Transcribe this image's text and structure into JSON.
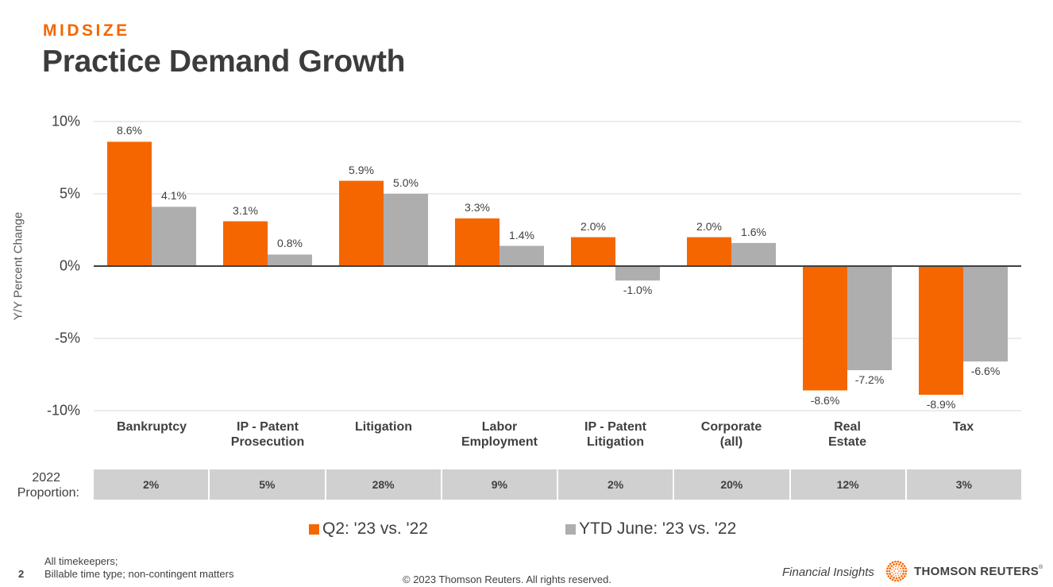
{
  "header": {
    "eyebrow": "MIDSIZE",
    "title": "Practice Demand Growth"
  },
  "colors": {
    "accent": "#f56600",
    "series_q2": "#f56600",
    "series_ytd": "#aeaeae",
    "gridline": "#d9d9d9",
    "zero_line": "#404040",
    "table_fill": "#d0d0d0"
  },
  "chart_data": {
    "type": "bar",
    "title": "Practice Demand Growth",
    "xlabel": "",
    "ylabel": "Y/Y Percent Change",
    "ylim": [
      -10,
      10
    ],
    "yticks": [
      10,
      5,
      0,
      -5,
      -10
    ],
    "ytick_labels": [
      "10%",
      "5%",
      "0%",
      "-5%",
      "-10%"
    ],
    "grid": true,
    "legend_position": "bottom",
    "categories": [
      "Bankruptcy",
      "IP - Patent Prosecution",
      "Litigation",
      "Labor Employment",
      "IP - Patent Litigation",
      "Corporate (all)",
      "Real Estate",
      "Tax"
    ],
    "category_lines": [
      [
        "Bankruptcy"
      ],
      [
        "IP - Patent",
        "Prosecution"
      ],
      [
        "Litigation"
      ],
      [
        "Labor",
        "Employment"
      ],
      [
        "IP - Patent",
        "Litigation"
      ],
      [
        "Corporate",
        "(all)"
      ],
      [
        "Real",
        "Estate"
      ],
      [
        "Tax"
      ]
    ],
    "series": [
      {
        "name": "Q2: '23 vs. '22",
        "values": [
          8.6,
          3.1,
          5.9,
          3.3,
          2.0,
          2.0,
          -8.6,
          -8.9
        ],
        "labels": [
          "8.6%",
          "3.1%",
          "5.9%",
          "3.3%",
          "2.0%",
          "2.0%",
          "-8.6%",
          "-8.9%"
        ]
      },
      {
        "name": "YTD June: '23 vs. '22",
        "values": [
          4.1,
          0.8,
          5.0,
          1.4,
          -1.0,
          1.6,
          -7.2,
          -6.6
        ],
        "labels": [
          "4.1%",
          "0.8%",
          "5.0%",
          "1.4%",
          "-1.0%",
          "1.6%",
          "-7.2%",
          "-6.6%"
        ]
      }
    ],
    "proportion_table": {
      "label_line1": "2022",
      "label_line2": "Proportion:",
      "values": [
        "2%",
        "5%",
        "28%",
        "9%",
        "2%",
        "20%",
        "12%",
        "3%"
      ]
    }
  },
  "footer": {
    "page_number": "2",
    "note_line1": "All timekeepers;",
    "note_line2": "Billable time type; non-contingent matters",
    "copyright": "© 2023 Thomson Reuters. All rights reserved.",
    "section": "Financial Insights",
    "brand": "THOMSON REUTERS",
    "brand_mark": "®",
    "logo_icon": "thomson-reuters-dot-sphere"
  }
}
